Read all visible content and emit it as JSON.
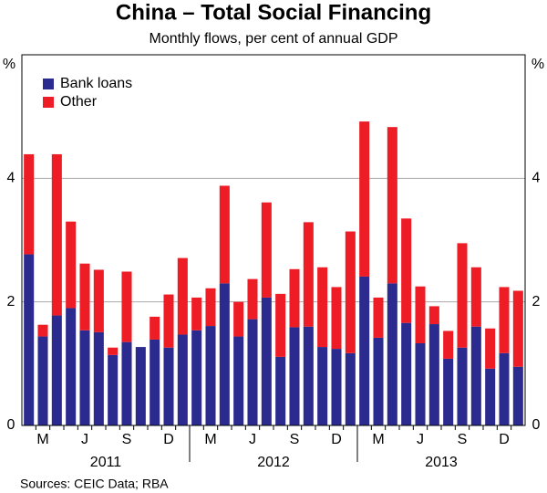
{
  "chart_data": {
    "type": "stacked_bar",
    "title": "China – Total Social Financing",
    "subtitle": "Monthly flows, per cent of annual GDP",
    "y_unit": "%",
    "source": "Sources: CEIC Data; RBA",
    "categories": [
      null,
      "M",
      null,
      null,
      "J",
      null,
      null,
      "S",
      null,
      null,
      "D",
      null,
      null,
      "M",
      null,
      null,
      "J",
      null,
      null,
      "S",
      null,
      null,
      "D",
      null,
      null,
      "M",
      null,
      null,
      "J",
      null,
      null,
      "S",
      null,
      null,
      "D",
      null
    ],
    "years": [
      "2011",
      "2012",
      "2013"
    ],
    "series": [
      {
        "name": "Bank loans",
        "color": "#2b2b8f",
        "values": [
          2.77,
          1.44,
          1.78,
          1.9,
          1.54,
          1.51,
          1.14,
          1.35,
          1.27,
          1.39,
          1.26,
          1.47,
          1.54,
          1.61,
          2.3,
          1.44,
          1.72,
          2.07,
          1.11,
          1.59,
          1.6,
          1.27,
          1.24,
          1.17,
          2.41,
          1.42,
          2.3,
          1.66,
          1.33,
          1.64,
          1.08,
          1.26,
          1.6,
          0.92,
          1.17,
          0.95
        ]
      },
      {
        "name": "Other",
        "color": "#ee1c25",
        "values": [
          1.62,
          0.19,
          2.61,
          1.4,
          1.08,
          1.01,
          0.12,
          1.14,
          0,
          0.37,
          0.86,
          1.24,
          0.53,
          0.61,
          1.58,
          0.56,
          0.65,
          1.54,
          1.02,
          0.94,
          1.69,
          1.29,
          1.0,
          1.97,
          2.51,
          0.65,
          2.53,
          1.69,
          0.92,
          0.29,
          0.45,
          1.69,
          0.96,
          0.65,
          1.07,
          1.23
        ]
      }
    ],
    "ylim": [
      0,
      6
    ],
    "yticks": [
      0,
      2,
      4
    ],
    "grid": true,
    "legend": "top-left"
  }
}
